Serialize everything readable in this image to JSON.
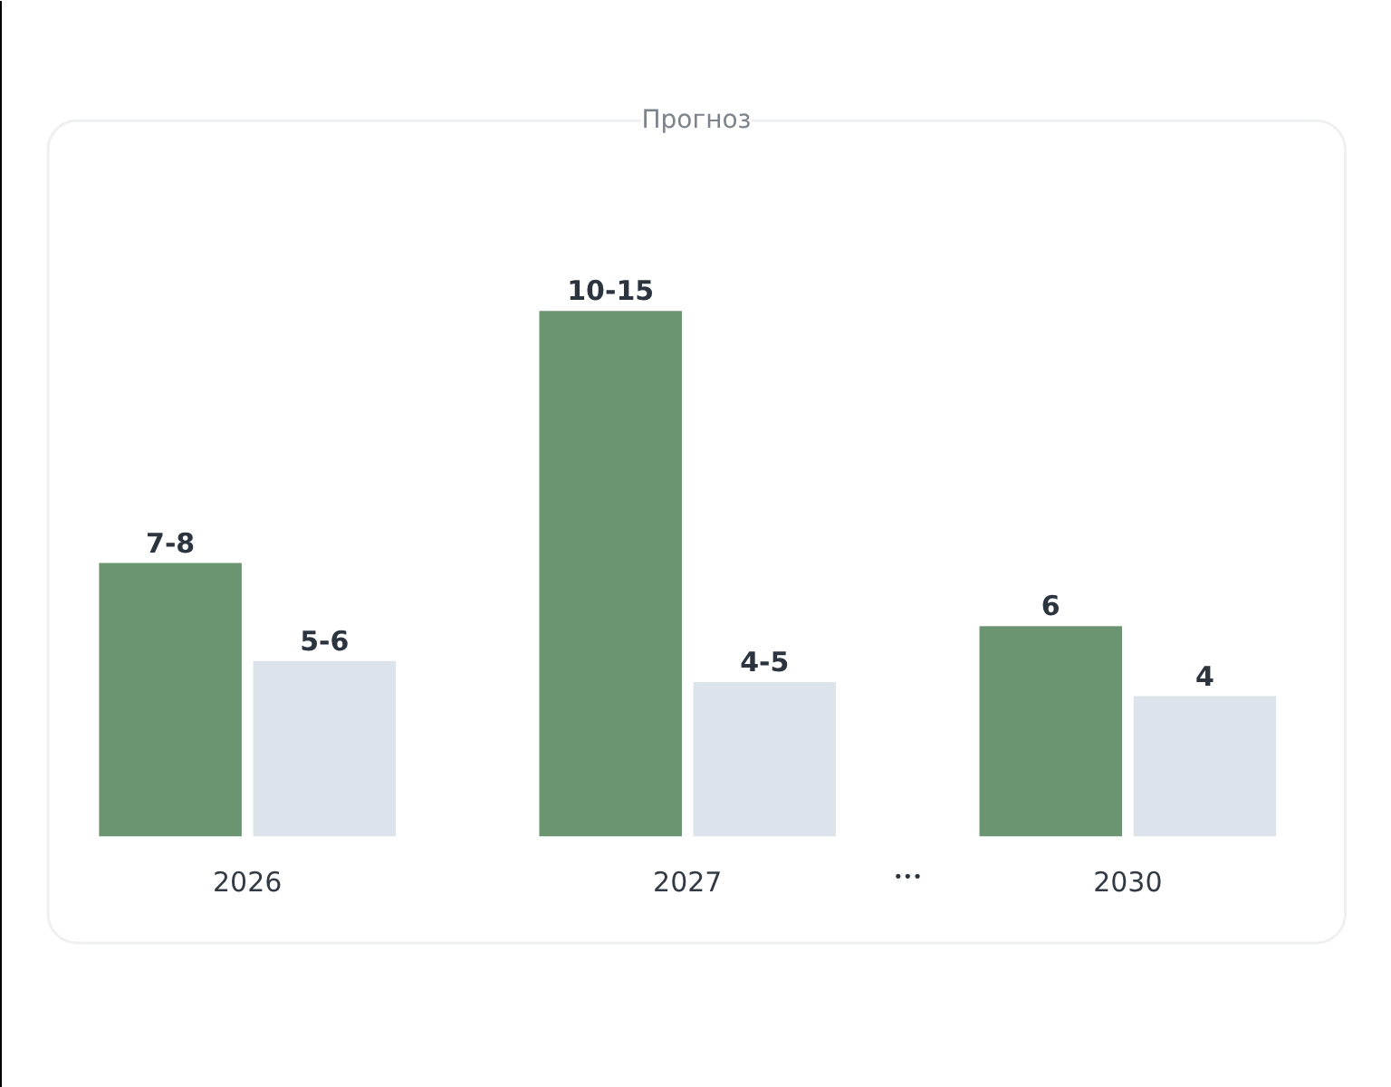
{
  "chart_data": {
    "type": "bar",
    "title": "Прогноз",
    "categories": [
      "2026",
      "2027",
      "2030"
    ],
    "series": [
      {
        "color": "#6b9470",
        "values": [
          7.8,
          15,
          6
        ],
        "value_labels": [
          "7-8",
          "10-15",
          "6"
        ]
      },
      {
        "color": "#dde3ea",
        "values": [
          5,
          4.4,
          4
        ],
        "value_labels": [
          "5-6",
          "4-5",
          "4"
        ]
      }
    ],
    "annotations": [
      "•••"
    ]
  }
}
